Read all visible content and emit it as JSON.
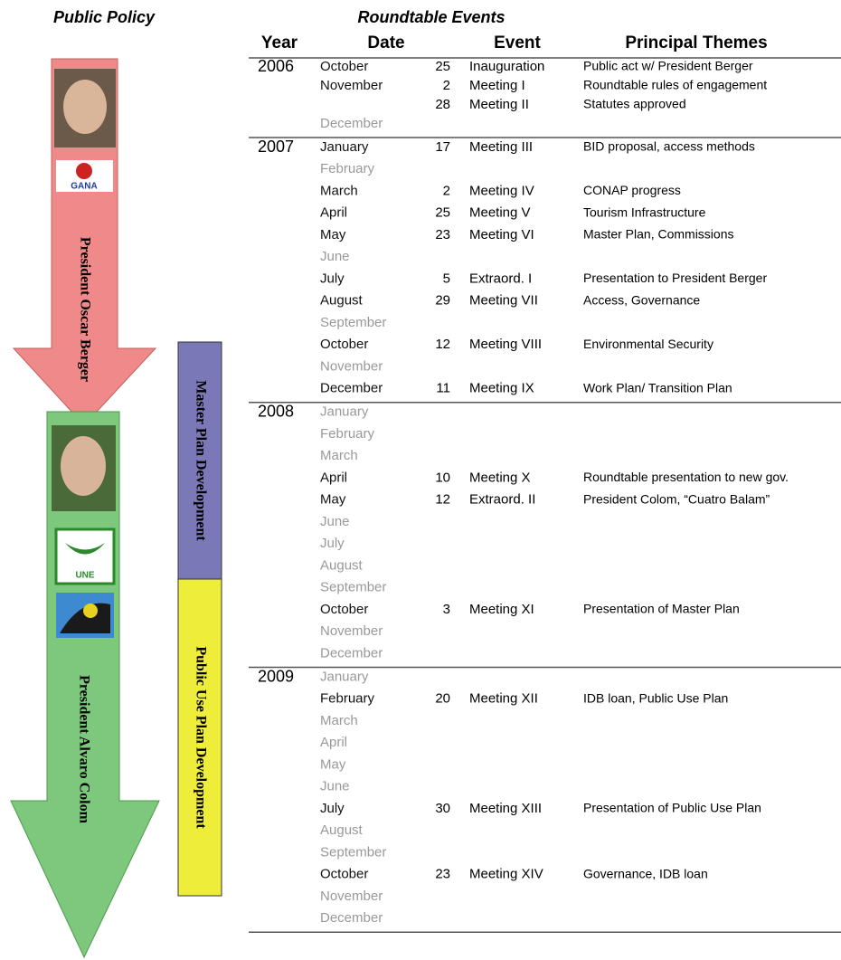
{
  "header": {
    "left_title": "Public Policy",
    "right_title": "Roundtable Events",
    "columns": [
      "Year",
      "Date",
      "Event",
      "Principal Themes"
    ]
  },
  "sidebar": {
    "berger": "President Oscar Berger",
    "colom": "President Alvaro Colom",
    "gana_logo": "GANA",
    "une_logo": "UNE",
    "master_plan": "Master Plan Development",
    "public_use_plan": "Public Use Plan Development"
  },
  "table": {
    "years": [
      {
        "year": "2006",
        "rows": [
          {
            "month": "October",
            "day": 25,
            "event": "Inauguration",
            "theme": "Public act w/ President Berger"
          },
          {
            "month": "November",
            "day": 2,
            "event": "Meeting I",
            "theme": "Roundtable rules of engagement"
          },
          {
            "day": 28,
            "event": "Meeting II",
            "theme": "Statutes approved"
          },
          {
            "month": "December"
          }
        ]
      },
      {
        "year": "2007",
        "rows": [
          {
            "month": "January",
            "day": 17,
            "event": "Meeting III",
            "theme": "BID proposal, access methods"
          },
          {
            "month": "February"
          },
          {
            "month": "March",
            "day": 2,
            "event": "Meeting IV",
            "theme": "CONAP progress"
          },
          {
            "month": "April",
            "day": 25,
            "event": "Meeting V",
            "theme": "Tourism Infrastructure"
          },
          {
            "month": "May",
            "day": 23,
            "event": "Meeting VI",
            "theme": "Master Plan, Commissions"
          },
          {
            "month": "June"
          },
          {
            "month": "July",
            "day": 5,
            "event": "Extraord. I",
            "theme": "Presentation to President Berger"
          },
          {
            "month": "August",
            "day": 29,
            "event": "Meeting VII",
            "theme": "Access, Governance"
          },
          {
            "month": "September"
          },
          {
            "month": "October",
            "day": 12,
            "event": "Meeting VIII",
            "theme": "Environmental Security"
          },
          {
            "month": "November"
          },
          {
            "month": "December",
            "day": 11,
            "event": "Meeting IX",
            "theme": "Work Plan/ Transition Plan"
          }
        ]
      },
      {
        "year": "2008",
        "rows": [
          {
            "month": "January"
          },
          {
            "month": "February"
          },
          {
            "month": "March"
          },
          {
            "month": "April",
            "day": 10,
            "event": "Meeting X",
            "theme": "Roundtable presentation to new gov."
          },
          {
            "month": "May",
            "day": 12,
            "event": "Extraord. II",
            "theme": "President Colom, “Cuatro Balam”"
          },
          {
            "month": "June"
          },
          {
            "month": "July"
          },
          {
            "month": "August"
          },
          {
            "month": "September"
          },
          {
            "month": "October",
            "day": 3,
            "event": "Meeting XI",
            "theme": "Presentation of Master Plan"
          },
          {
            "month": "November"
          },
          {
            "month": "December"
          }
        ]
      },
      {
        "year": "2009",
        "rows": [
          {
            "month": "January"
          },
          {
            "month": "February",
            "day": 20,
            "event": "Meeting XII",
            "theme": "IDB loan, Public Use Plan"
          },
          {
            "month": "March"
          },
          {
            "month": "April"
          },
          {
            "month": "May"
          },
          {
            "month": "June"
          },
          {
            "month": "July",
            "day": 30,
            "event": "Meeting XIII",
            "theme": "Presentation of Public Use Plan"
          },
          {
            "month": "August"
          },
          {
            "month": "September"
          },
          {
            "month": "October",
            "day": 23,
            "event": "Meeting XIV",
            "theme": "Governance, IDB loan"
          },
          {
            "month": "November"
          },
          {
            "month": "December"
          }
        ]
      }
    ]
  }
}
